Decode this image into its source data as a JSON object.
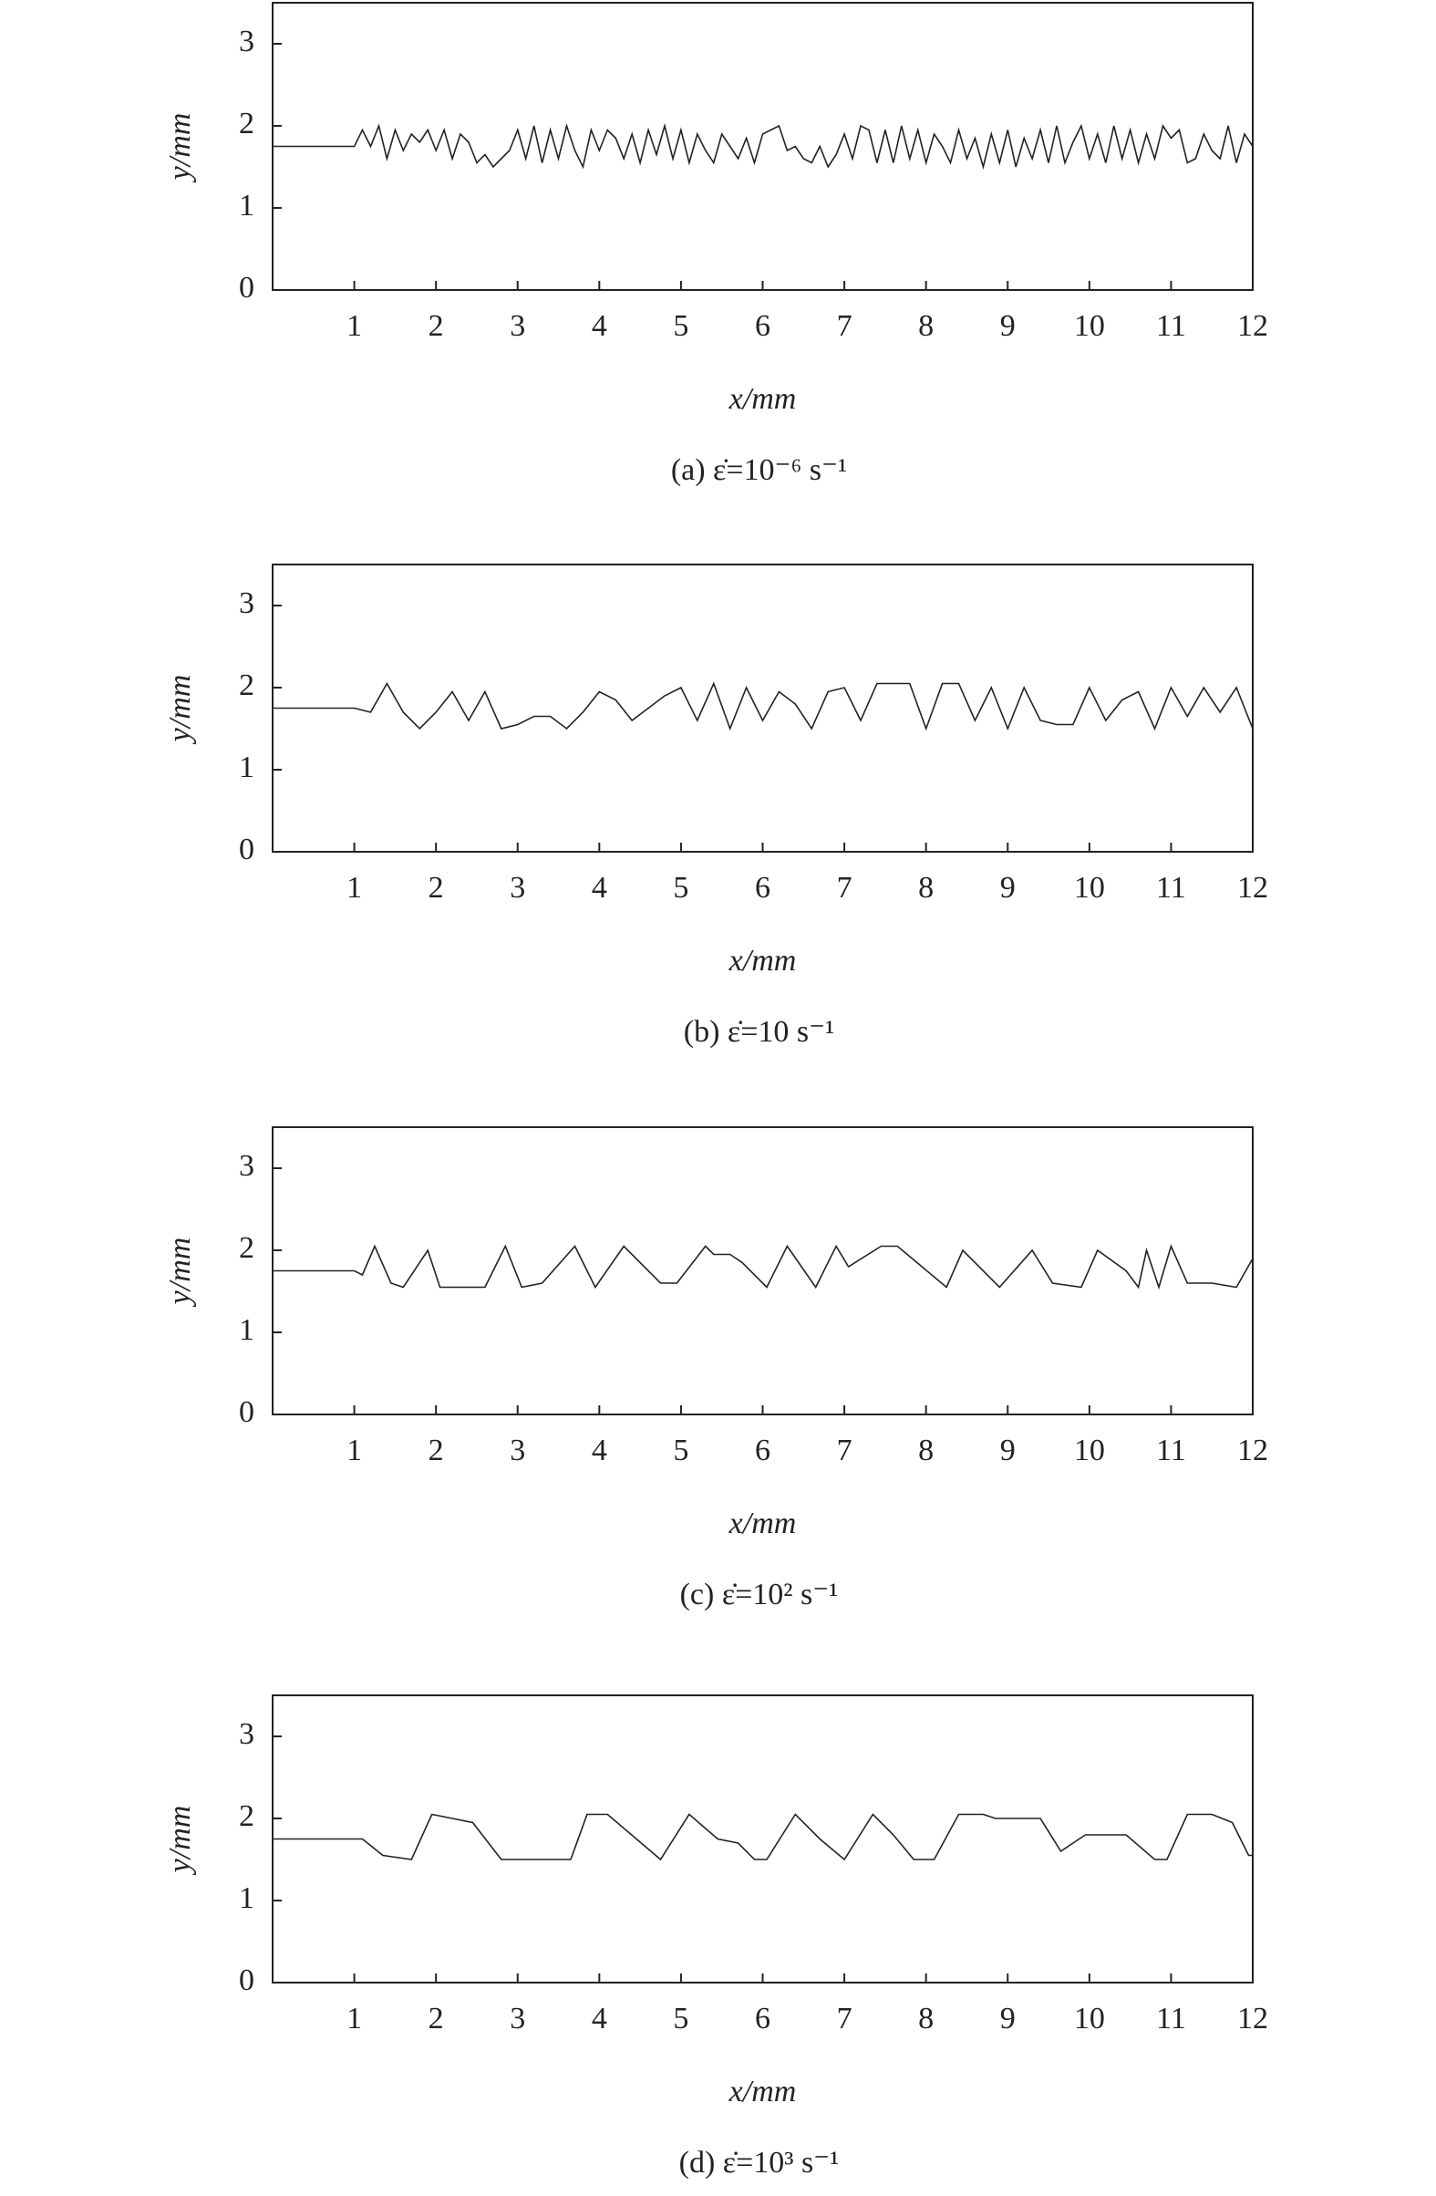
{
  "chart_data": [
    {
      "type": "line",
      "title": "(a) ε̇=10⁻⁶ s⁻¹",
      "x_label": "x/mm",
      "y_label": "y/mm",
      "color": "#222222",
      "xlim": [
        0,
        12
      ],
      "ylim": [
        0,
        3.5
      ],
      "xticks": [
        1,
        2,
        3,
        4,
        5,
        6,
        7,
        8,
        9,
        10,
        11,
        12
      ],
      "yticks": [
        0,
        1,
        2,
        3
      ],
      "x": [
        0,
        1.0,
        1.1,
        1.2,
        1.3,
        1.4,
        1.5,
        1.6,
        1.7,
        1.8,
        1.9,
        2.0,
        2.1,
        2.2,
        2.3,
        2.4,
        2.5,
        2.6,
        2.7,
        2.8,
        2.9,
        3.0,
        3.1,
        3.2,
        3.3,
        3.4,
        3.5,
        3.6,
        3.7,
        3.8,
        3.9,
        4.0,
        4.1,
        4.2,
        4.3,
        4.4,
        4.5,
        4.6,
        4.7,
        4.8,
        4.9,
        5.0,
        5.1,
        5.2,
        5.3,
        5.4,
        5.5,
        5.6,
        5.7,
        5.8,
        5.9,
        6.0,
        6.1,
        6.2,
        6.3,
        6.4,
        6.5,
        6.6,
        6.7,
        6.8,
        6.9,
        7.0,
        7.1,
        7.2,
        7.3,
        7.4,
        7.5,
        7.6,
        7.7,
        7.8,
        7.9,
        8.0,
        8.1,
        8.2,
        8.3,
        8.4,
        8.5,
        8.6,
        8.7,
        8.8,
        8.9,
        9.0,
        9.1,
        9.2,
        9.3,
        9.4,
        9.5,
        9.6,
        9.7,
        9.8,
        9.9,
        10.0,
        10.1,
        10.2,
        10.3,
        10.4,
        10.5,
        10.6,
        10.7,
        10.8,
        10.9,
        11.0,
        11.1,
        11.2,
        11.3,
        11.4,
        11.5,
        11.6,
        11.7,
        11.8,
        11.9,
        12.0
      ],
      "values": [
        1.75,
        1.75,
        1.95,
        1.75,
        2.0,
        1.6,
        1.95,
        1.7,
        1.9,
        1.8,
        1.95,
        1.7,
        1.95,
        1.6,
        1.9,
        1.8,
        1.55,
        1.65,
        1.5,
        1.6,
        1.7,
        1.95,
        1.6,
        2.0,
        1.55,
        1.95,
        1.6,
        2.0,
        1.7,
        1.5,
        1.95,
        1.7,
        1.95,
        1.85,
        1.6,
        1.9,
        1.55,
        1.95,
        1.65,
        2.0,
        1.6,
        1.95,
        1.55,
        1.9,
        1.7,
        1.55,
        1.9,
        1.75,
        1.6,
        1.85,
        1.55,
        1.9,
        1.95,
        2.0,
        1.7,
        1.75,
        1.6,
        1.55,
        1.75,
        1.5,
        1.65,
        1.9,
        1.6,
        2.0,
        1.95,
        1.55,
        1.95,
        1.55,
        2.0,
        1.6,
        1.95,
        1.55,
        1.9,
        1.75,
        1.55,
        1.95,
        1.6,
        1.85,
        1.5,
        1.9,
        1.55,
        1.95,
        1.5,
        1.85,
        1.6,
        1.95,
        1.55,
        2.0,
        1.55,
        1.8,
        2.0,
        1.6,
        1.9,
        1.55,
        2.0,
        1.6,
        1.95,
        1.55,
        1.9,
        1.6,
        2.0,
        1.85,
        1.95,
        1.55,
        1.6,
        1.9,
        1.7,
        1.6,
        2.0,
        1.55,
        1.9,
        1.75
      ]
    },
    {
      "type": "line",
      "title": "(b) ε̇=10 s⁻¹",
      "x_label": "x/mm",
      "y_label": "y/mm",
      "color": "#222222",
      "xlim": [
        0,
        12
      ],
      "ylim": [
        0,
        3.5
      ],
      "xticks": [
        1,
        2,
        3,
        4,
        5,
        6,
        7,
        8,
        9,
        10,
        11,
        12
      ],
      "yticks": [
        0,
        1,
        2,
        3
      ],
      "x": [
        0,
        1.0,
        1.2,
        1.4,
        1.6,
        1.8,
        2.0,
        2.2,
        2.4,
        2.6,
        2.8,
        3.0,
        3.2,
        3.4,
        3.6,
        3.8,
        4.0,
        4.2,
        4.4,
        4.6,
        4.8,
        5.0,
        5.2,
        5.4,
        5.6,
        5.8,
        6.0,
        6.2,
        6.4,
        6.6,
        6.8,
        7.0,
        7.2,
        7.4,
        7.6,
        7.8,
        8.0,
        8.2,
        8.4,
        8.6,
        8.8,
        9.0,
        9.2,
        9.4,
        9.6,
        9.8,
        10.0,
        10.2,
        10.4,
        10.6,
        10.8,
        11.0,
        11.2,
        11.4,
        11.6,
        11.8,
        12.0
      ],
      "values": [
        1.75,
        1.75,
        1.7,
        2.05,
        1.7,
        1.5,
        1.7,
        1.95,
        1.6,
        1.95,
        1.5,
        1.55,
        1.65,
        1.65,
        1.5,
        1.7,
        1.95,
        1.85,
        1.6,
        1.75,
        1.9,
        2.0,
        1.6,
        2.05,
        1.5,
        2.0,
        1.6,
        1.95,
        1.8,
        1.5,
        1.95,
        2.0,
        1.6,
        2.05,
        2.05,
        2.05,
        1.5,
        2.05,
        2.05,
        1.6,
        2.0,
        1.5,
        2.0,
        1.6,
        1.55,
        1.55,
        2.0,
        1.6,
        1.85,
        1.95,
        1.5,
        2.0,
        1.65,
        2.0,
        1.7,
        2.0,
        1.5
      ]
    },
    {
      "type": "line",
      "title": "(c) ε̇=10² s⁻¹",
      "x_label": "x/mm",
      "y_label": "y/mm",
      "color": "#222222",
      "xlim": [
        0,
        12
      ],
      "ylim": [
        0,
        3.5
      ],
      "xticks": [
        1,
        2,
        3,
        4,
        5,
        6,
        7,
        8,
        9,
        10,
        11,
        12
      ],
      "yticks": [
        0,
        1,
        2,
        3
      ],
      "x": [
        0,
        1.0,
        1.1,
        1.25,
        1.45,
        1.6,
        1.9,
        2.05,
        2.6,
        2.85,
        3.05,
        3.3,
        3.7,
        3.95,
        4.3,
        4.75,
        4.95,
        5.3,
        5.4,
        5.6,
        5.75,
        6.05,
        6.3,
        6.65,
        6.9,
        7.05,
        7.45,
        7.65,
        8.25,
        8.45,
        8.9,
        9.3,
        9.55,
        9.9,
        10.1,
        10.45,
        10.6,
        10.7,
        10.85,
        11.0,
        11.2,
        11.5,
        11.8,
        12
      ],
      "values": [
        1.75,
        1.75,
        1.7,
        2.05,
        1.6,
        1.55,
        2.0,
        1.55,
        1.55,
        2.05,
        1.55,
        1.6,
        2.05,
        1.55,
        2.05,
        1.6,
        1.6,
        2.05,
        1.95,
        1.95,
        1.85,
        1.55,
        2.05,
        1.55,
        2.05,
        1.8,
        2.05,
        2.05,
        1.55,
        2.0,
        1.55,
        2.0,
        1.6,
        1.55,
        2.0,
        1.75,
        1.55,
        2.0,
        1.55,
        2.05,
        1.6,
        1.6,
        1.55,
        1.9
      ]
    },
    {
      "type": "line",
      "title": "(d) ε̇=10³ s⁻¹",
      "x_label": "x/mm",
      "y_label": "y/mm",
      "color": "#222222",
      "xlim": [
        0,
        12
      ],
      "ylim": [
        0,
        3.5
      ],
      "xticks": [
        1,
        2,
        3,
        4,
        5,
        6,
        7,
        8,
        9,
        10,
        11,
        12
      ],
      "yticks": [
        0,
        1,
        2,
        3
      ],
      "x": [
        0,
        1.1,
        1.35,
        1.7,
        1.95,
        2.2,
        2.45,
        2.8,
        3.65,
        3.85,
        4.1,
        4.75,
        5.1,
        5.45,
        5.7,
        5.9,
        6.05,
        6.4,
        6.7,
        7.0,
        7.35,
        7.6,
        7.85,
        8.1,
        8.4,
        8.7,
        8.85,
        9.4,
        9.65,
        9.95,
        10.45,
        10.8,
        10.95,
        11.2,
        11.5,
        11.75,
        11.95,
        12
      ],
      "values": [
        1.75,
        1.75,
        1.55,
        1.5,
        2.05,
        2.0,
        1.95,
        1.5,
        1.5,
        2.05,
        2.05,
        1.5,
        2.05,
        1.75,
        1.7,
        1.5,
        1.5,
        2.05,
        1.75,
        1.5,
        2.05,
        1.8,
        1.5,
        1.5,
        2.05,
        2.05,
        2.0,
        2.0,
        1.6,
        1.8,
        1.8,
        1.5,
        1.5,
        2.05,
        2.05,
        1.95,
        1.55,
        1.55
      ]
    }
  ]
}
